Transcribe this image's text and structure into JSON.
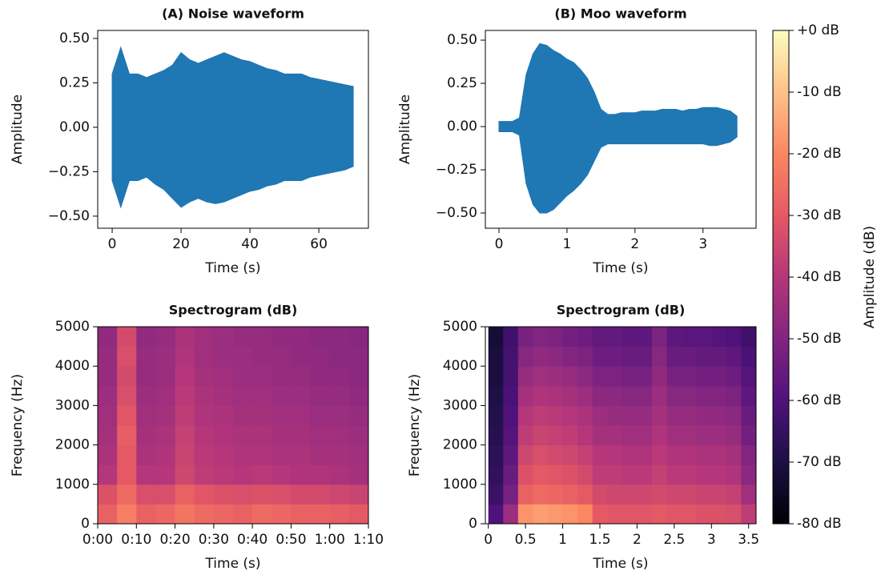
{
  "chart_data": [
    {
      "type": "waveform",
      "title": "(A) Noise waveform",
      "xlabel": "Time (s)",
      "ylabel": "Amplitude",
      "color": "#1f77b4",
      "x": [
        0,
        2.5,
        5,
        7.5,
        10,
        12.5,
        15,
        17.5,
        20,
        22.5,
        25,
        27.5,
        30,
        32.5,
        35,
        37.5,
        40,
        42.5,
        45,
        47.5,
        50,
        52.5,
        55,
        57.5,
        60,
        62.5,
        65,
        67.5,
        70
      ],
      "upper": [
        0.3,
        0.45,
        0.3,
        0.3,
        0.28,
        0.3,
        0.32,
        0.35,
        0.42,
        0.38,
        0.36,
        0.38,
        0.4,
        0.42,
        0.4,
        0.38,
        0.37,
        0.35,
        0.33,
        0.32,
        0.3,
        0.3,
        0.3,
        0.28,
        0.27,
        0.26,
        0.25,
        0.24,
        0.23
      ],
      "lower": [
        -0.3,
        -0.45,
        -0.3,
        -0.3,
        -0.28,
        -0.32,
        -0.35,
        -0.4,
        -0.45,
        -0.42,
        -0.4,
        -0.42,
        -0.43,
        -0.42,
        -0.4,
        -0.38,
        -0.36,
        -0.35,
        -0.33,
        -0.32,
        -0.3,
        -0.3,
        -0.3,
        -0.28,
        -0.27,
        -0.26,
        -0.25,
        -0.24,
        -0.22
      ],
      "xlim": [
        -4.2,
        74.4
      ],
      "ylim": [
        -0.568,
        0.545
      ],
      "xticks": [
        0,
        20,
        40,
        60
      ],
      "yticks": [
        {
          "value": -0.5,
          "label": "−0.50"
        },
        {
          "value": -0.25,
          "label": "−0.25"
        },
        {
          "value": 0,
          "label": "0.00"
        },
        {
          "value": 0.25,
          "label": "0.25"
        },
        {
          "value": 0.5,
          "label": "0.50"
        }
      ]
    },
    {
      "type": "waveform",
      "title": "(B) Moo waveform",
      "xlabel": "Time (s)",
      "ylabel": "Amplitude",
      "color": "#1f77b4",
      "x": [
        0,
        0.1,
        0.2,
        0.3,
        0.4,
        0.5,
        0.6,
        0.7,
        0.8,
        0.9,
        1,
        1.1,
        1.2,
        1.3,
        1.4,
        1.5,
        1.6,
        1.7,
        1.8,
        1.9,
        2,
        2.1,
        2.2,
        2.3,
        2.4,
        2.5,
        2.6,
        2.7,
        2.8,
        2.9,
        3,
        3.1,
        3.2,
        3.3,
        3.4,
        3.5
      ],
      "upper": [
        0.03,
        0.03,
        0.03,
        0.05,
        0.3,
        0.42,
        0.48,
        0.47,
        0.44,
        0.42,
        0.39,
        0.37,
        0.33,
        0.28,
        0.2,
        0.1,
        0.07,
        0.07,
        0.08,
        0.08,
        0.08,
        0.09,
        0.09,
        0.09,
        0.1,
        0.1,
        0.1,
        0.09,
        0.1,
        0.1,
        0.11,
        0.11,
        0.11,
        0.1,
        0.09,
        0.06
      ],
      "lower": [
        -0.03,
        -0.03,
        -0.03,
        -0.05,
        -0.33,
        -0.45,
        -0.5,
        -0.5,
        -0.48,
        -0.44,
        -0.4,
        -0.37,
        -0.33,
        -0.28,
        -0.2,
        -0.12,
        -0.1,
        -0.1,
        -0.1,
        -0.1,
        -0.1,
        -0.1,
        -0.1,
        -0.1,
        -0.1,
        -0.1,
        -0.1,
        -0.1,
        -0.1,
        -0.1,
        -0.1,
        -0.11,
        -0.11,
        -0.1,
        -0.09,
        -0.06
      ],
      "xlim": [
        -0.2,
        3.78
      ],
      "ylim": [
        -0.588,
        0.556
      ],
      "xticks": [
        0,
        1,
        2,
        3
      ],
      "yticks": [
        {
          "value": -0.5,
          "label": "−0.50"
        },
        {
          "value": -0.25,
          "label": "−0.25"
        },
        {
          "value": 0,
          "label": "0.00"
        },
        {
          "value": 0.25,
          "label": "0.25"
        },
        {
          "value": 0.5,
          "label": "0.50"
        }
      ]
    },
    {
      "type": "heatmap",
      "title": "Spectrogram (dB)",
      "xlabel": "Time (s)",
      "ylabel": "Frequency (Hz)",
      "x": [
        2.5,
        7.5,
        12.5,
        17.5,
        22.5,
        27.5,
        32.5,
        37.5,
        42.5,
        47.5,
        52.5,
        57.5,
        62.5,
        67.5
      ],
      "y": [
        250,
        750,
        1250,
        1750,
        2250,
        2750,
        3250,
        3750,
        4250,
        4750
      ],
      "values": [
        [
          -28,
          -22,
          -28,
          -27,
          -24,
          -26,
          -27,
          -28,
          -26,
          -27,
          -28,
          -28,
          -29,
          -30
        ],
        [
          -32,
          -26,
          -33,
          -33,
          -28,
          -31,
          -32,
          -33,
          -32,
          -33,
          -34,
          -34,
          -35,
          -36
        ],
        [
          -40,
          -30,
          -40,
          -40,
          -35,
          -38,
          -39,
          -40,
          -39,
          -40,
          -41,
          -41,
          -42,
          -43
        ],
        [
          -42,
          -30,
          -42,
          -41,
          -36,
          -39,
          -40,
          -41,
          -41,
          -42,
          -42,
          -43,
          -43,
          -44
        ],
        [
          -43,
          -29,
          -43,
          -42,
          -37,
          -40,
          -41,
          -42,
          -42,
          -43,
          -43,
          -44,
          -44,
          -45
        ],
        [
          -44,
          -31,
          -44,
          -43,
          -38,
          -41,
          -42,
          -43,
          -43,
          -44,
          -44,
          -45,
          -45,
          -46
        ],
        [
          -45,
          -33,
          -45,
          -44,
          -39,
          -42,
          -43,
          -44,
          -44,
          -45,
          -45,
          -46,
          -46,
          -47
        ],
        [
          -46,
          -34,
          -46,
          -45,
          -40,
          -43,
          -44,
          -45,
          -45,
          -46,
          -46,
          -47,
          -47,
          -48
        ],
        [
          -46,
          -33,
          -46,
          -45,
          -41,
          -44,
          -45,
          -45,
          -46,
          -46,
          -47,
          -47,
          -48,
          -48
        ],
        [
          -47,
          -34,
          -47,
          -46,
          -42,
          -44,
          -45,
          -46,
          -46,
          -47,
          -47,
          -48,
          -48,
          -49
        ]
      ],
      "xlim": [
        0,
        70
      ],
      "ylim": [
        0,
        5000
      ],
      "yticks": [
        0,
        1000,
        2000,
        3000,
        4000,
        5000
      ],
      "xticks": [
        {
          "value": 0,
          "label": "0:00"
        },
        {
          "value": 10,
          "label": "0:10"
        },
        {
          "value": 20,
          "label": "0:20"
        },
        {
          "value": 30,
          "label": "0:30"
        },
        {
          "value": 40,
          "label": "0:40"
        },
        {
          "value": 50,
          "label": "0:50"
        },
        {
          "value": 60,
          "label": "1:00"
        },
        {
          "value": 70,
          "label": "1:10"
        }
      ]
    },
    {
      "type": "heatmap",
      "title": "Spectrogram (dB)",
      "xlabel": "Time (s)",
      "ylabel": "Frequency (Hz)",
      "x": [
        0.1,
        0.3,
        0.5,
        0.7,
        0.9,
        1.1,
        1.3,
        1.5,
        1.7,
        1.9,
        2.1,
        2.3,
        2.5,
        2.7,
        2.9,
        3.1,
        3.3,
        3.5
      ],
      "y": [
        250,
        750,
        1250,
        1750,
        2250,
        2750,
        3250,
        3750,
        4250,
        4750
      ],
      "values": [
        [
          -60,
          -45,
          -18,
          -16,
          -17,
          -18,
          -20,
          -30,
          -31,
          -31,
          -31,
          -30,
          -31,
          -31,
          -32,
          -32,
          -33,
          -38
        ],
        [
          -64,
          -52,
          -28,
          -26,
          -27,
          -28,
          -30,
          -34,
          -35,
          -35,
          -35,
          -34,
          -35,
          -35,
          -36,
          -36,
          -37,
          -44
        ],
        [
          -66,
          -55,
          -32,
          -30,
          -31,
          -32,
          -34,
          -38,
          -38,
          -39,
          -39,
          -37,
          -39,
          -39,
          -40,
          -40,
          -41,
          -48
        ],
        [
          -67,
          -57,
          -35,
          -33,
          -34,
          -35,
          -37,
          -40,
          -40,
          -41,
          -41,
          -39,
          -41,
          -41,
          -42,
          -42,
          -43,
          -50
        ],
        [
          -68,
          -59,
          -38,
          -36,
          -37,
          -38,
          -40,
          -43,
          -43,
          -44,
          -44,
          -41,
          -44,
          -44,
          -45,
          -45,
          -46,
          -53
        ],
        [
          -69,
          -60,
          -40,
          -38,
          -39,
          -40,
          -42,
          -45,
          -46,
          -46,
          -46,
          -43,
          -46,
          -46,
          -47,
          -47,
          -48,
          -55
        ],
        [
          -70,
          -61,
          -43,
          -41,
          -42,
          -43,
          -45,
          -48,
          -48,
          -49,
          -49,
          -45,
          -49,
          -49,
          -50,
          -50,
          -51,
          -57
        ],
        [
          -71,
          -62,
          -46,
          -44,
          -45,
          -46,
          -48,
          -51,
          -51,
          -52,
          -52,
          -47,
          -52,
          -52,
          -53,
          -53,
          -54,
          -59
        ],
        [
          -71,
          -62,
          -49,
          -47,
          -48,
          -50,
          -51,
          -54,
          -54,
          -55,
          -55,
          -49,
          -55,
          -55,
          -56,
          -56,
          -57,
          -61
        ],
        [
          -72,
          -63,
          -52,
          -50,
          -51,
          -53,
          -54,
          -56,
          -56,
          -57,
          -57,
          -51,
          -57,
          -58,
          -58,
          -59,
          -60,
          -63
        ]
      ],
      "xlim": [
        -0.04,
        3.6
      ],
      "ylim": [
        0,
        5000
      ],
      "yticks": [
        0,
        1000,
        2000,
        3000,
        4000,
        5000
      ],
      "xticks": [
        0,
        0.5,
        1,
        1.5,
        2,
        2.5,
        3,
        3.5
      ]
    },
    {
      "type": "colorbar",
      "label": "Amplitude (dB)",
      "ylim": [
        -80,
        0
      ],
      "colormap": [
        "#000004",
        "#1c1044",
        "#4f127b",
        "#812581",
        "#b5367a",
        "#e55964",
        "#fb8761",
        "#fec287",
        "#fcfdbf"
      ],
      "yticks": [
        {
          "value": -80,
          "label": "-80 dB"
        },
        {
          "value": -70,
          "label": "-70 dB"
        },
        {
          "value": -60,
          "label": "-60 dB"
        },
        {
          "value": -50,
          "label": "-50 dB"
        },
        {
          "value": -40,
          "label": "-40 dB"
        },
        {
          "value": -30,
          "label": "-30 dB"
        },
        {
          "value": -20,
          "label": "-20 dB"
        },
        {
          "value": -10,
          "label": "-10 dB"
        },
        {
          "value": 0,
          "label": "+0 dB"
        }
      ]
    }
  ]
}
